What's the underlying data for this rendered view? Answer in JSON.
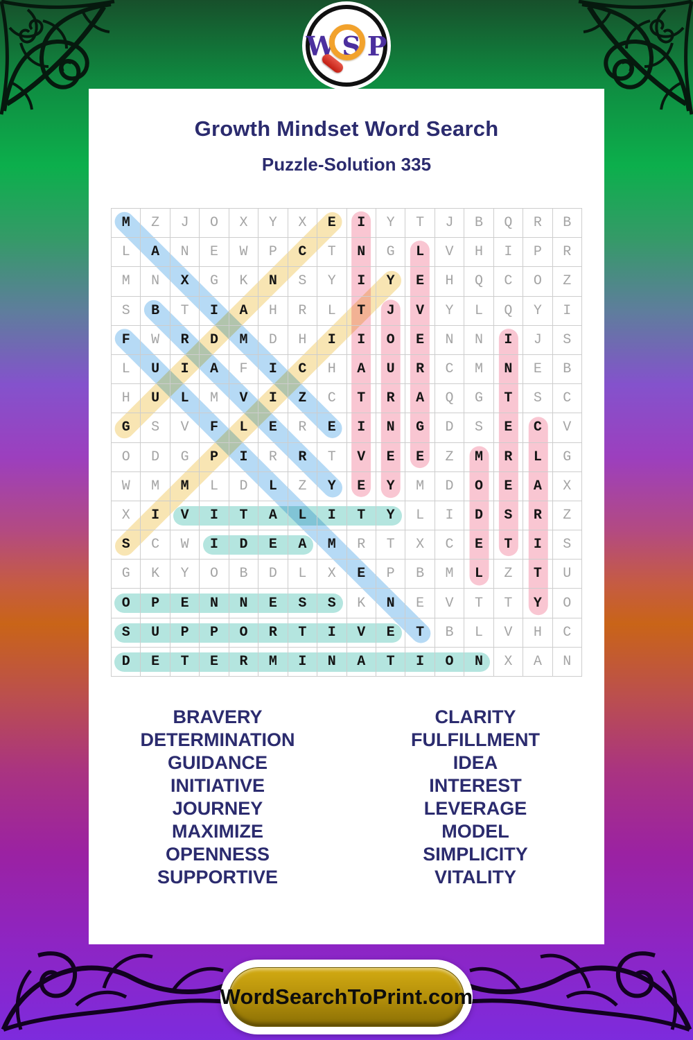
{
  "logo": {
    "letters": [
      "W",
      "S",
      "P"
    ]
  },
  "header": {
    "title": "Growth Mindset Word Search",
    "subtitle": "Puzzle-Solution 335"
  },
  "puzzle": {
    "size": 16,
    "rows": [
      "MZJOXYXEIYTJBQRB",
      "LANEWPCTNGLVHIPR",
      "MNXGKNSYIYEHQCOZ",
      "SBTIAHRLTJVYLQYI",
      "FWRDMDHIIOENNIJS",
      "LUIAFICHAURCMNEB",
      "HULMVIZCTRAQGTSC",
      "GSVFLEREINGDSECV",
      "ODGPIRRTVEEZMRLG",
      "WMMLDLZYEYMDOEAX",
      "XIVITALITYLIDSRZ",
      "SCWIDEAMRTXCETIS",
      "GKYOBDLXEPBMLZTU",
      "OPENNESSKNEVTTYO",
      "SUPPORTIVETBLVHC",
      "DETERMINATIONXAN"
    ],
    "highlight_colors": {
      "blue": "#aed6f4",
      "yellow": "#f8e3ab",
      "pink": "#f9c0cd",
      "teal": "#ace3dc"
    },
    "solutions": [
      {
        "word": "MAXIMIZE",
        "row": 1,
        "col": 1,
        "drow": 1,
        "dcol": 1,
        "color": "blue"
      },
      {
        "word": "BRAVERY",
        "row": 4,
        "col": 2,
        "drow": 1,
        "dcol": 1,
        "color": "blue"
      },
      {
        "word": "FULFILLMENT",
        "row": 5,
        "col": 1,
        "drow": 1,
        "dcol": 1,
        "color": "blue"
      },
      {
        "word": "GUIDANCE",
        "row": 8,
        "col": 1,
        "drow": -1,
        "dcol": 1,
        "color": "yellow"
      },
      {
        "word": "SIMPLICITY",
        "row": 12,
        "col": 1,
        "drow": -1,
        "dcol": 1,
        "color": "yellow"
      },
      {
        "word": "INITIATIVE",
        "row": 1,
        "col": 9,
        "drow": 1,
        "dcol": 0,
        "color": "pink"
      },
      {
        "word": "JOURNEY",
        "row": 4,
        "col": 10,
        "drow": 1,
        "dcol": 0,
        "color": "pink"
      },
      {
        "word": "LEVERAGE",
        "row": 2,
        "col": 11,
        "drow": 1,
        "dcol": 0,
        "color": "pink"
      },
      {
        "word": "MODEL",
        "row": 9,
        "col": 13,
        "drow": 1,
        "dcol": 0,
        "color": "pink"
      },
      {
        "word": "INTEREST",
        "row": 5,
        "col": 14,
        "drow": 1,
        "dcol": 0,
        "color": "pink"
      },
      {
        "word": "CLARITY",
        "row": 8,
        "col": 15,
        "drow": 1,
        "dcol": 0,
        "color": "pink"
      },
      {
        "word": "VITALITY",
        "row": 11,
        "col": 3,
        "drow": 0,
        "dcol": 1,
        "color": "teal"
      },
      {
        "word": "IDEA",
        "row": 12,
        "col": 4,
        "drow": 0,
        "dcol": 1,
        "color": "teal"
      },
      {
        "word": "OPENNESS",
        "row": 14,
        "col": 1,
        "drow": 0,
        "dcol": 1,
        "color": "teal"
      },
      {
        "word": "SUPPORTIVE",
        "row": 15,
        "col": 1,
        "drow": 0,
        "dcol": 1,
        "color": "teal"
      },
      {
        "word": "DETERMINATION",
        "row": 16,
        "col": 1,
        "drow": 0,
        "dcol": 1,
        "color": "teal"
      }
    ]
  },
  "word_list": {
    "left": [
      "BRAVERY",
      "DETERMINATION",
      "GUIDANCE",
      "INITIATIVE",
      "JOURNEY",
      "MAXIMIZE",
      "OPENNESS",
      "SUPPORTIVE"
    ],
    "right": [
      "CLARITY",
      "FULFILLMENT",
      "IDEA",
      "INTEREST",
      "LEVERAGE",
      "MODEL",
      "SIMPLICITY",
      "VITALITY"
    ]
  },
  "footer": {
    "button_label": "WordSearchToPrint.com"
  },
  "colors": {
    "heading_navy": "#2b2b6e",
    "button_gold": "#b18d0a",
    "logo_purple": "#4b2f9e",
    "magnifier_orange": "#f2a22c",
    "magnifier_handle_red": "#c21d12"
  }
}
